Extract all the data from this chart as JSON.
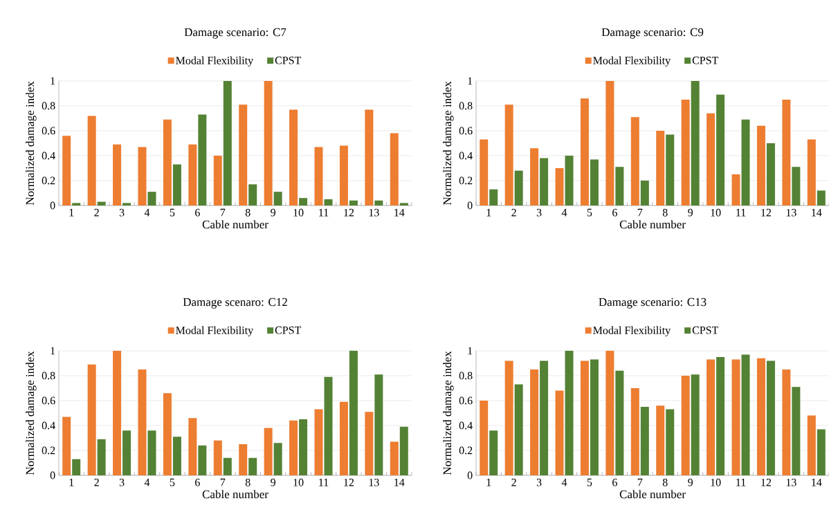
{
  "chart_data": [
    {
      "type": "bar",
      "title": "Damage scenario: C7",
      "xlabel": "Cable number",
      "ylabel": "Normalized damage index",
      "categories": [
        "1",
        "2",
        "3",
        "4",
        "5",
        "6",
        "7",
        "8",
        "9",
        "10",
        "11",
        "12",
        "13",
        "14"
      ],
      "series": [
        {
          "name": "Modal Flexibility",
          "color": "#ed7d31",
          "values": [
            0.56,
            0.72,
            0.49,
            0.47,
            0.69,
            0.49,
            0.4,
            0.81,
            1,
            0.77,
            0.47,
            0.48,
            0.77,
            0.58
          ]
        },
        {
          "name": "CPST",
          "color": "#548235",
          "values": [
            0.02,
            0.03,
            0.02,
            0.11,
            0.33,
            0.73,
            1,
            0.17,
            0.11,
            0.06,
            0.05,
            0.04,
            0.04,
            0.02
          ]
        }
      ],
      "ylim": [
        0,
        1
      ],
      "yticks": [
        0,
        0.2,
        0.4,
        0.6,
        0.8,
        1
      ],
      "grid": "y",
      "legend": "top"
    },
    {
      "type": "bar",
      "title": "Damage scenario: C9",
      "xlabel": "Cable number",
      "ylabel": "Normalized damage index",
      "categories": [
        "1",
        "2",
        "3",
        "4",
        "5",
        "6",
        "7",
        "8",
        "9",
        "10",
        "11",
        "12",
        "13",
        "14"
      ],
      "series": [
        {
          "name": "Modal Flexibility",
          "color": "#ed7d31",
          "values": [
            0.53,
            0.81,
            0.46,
            0.3,
            0.86,
            1,
            0.71,
            0.6,
            0.85,
            0.74,
            0.25,
            0.64,
            0.85,
            0.53
          ]
        },
        {
          "name": "CPST",
          "color": "#548235",
          "values": [
            0.13,
            0.28,
            0.38,
            0.4,
            0.37,
            0.31,
            0.2,
            0.57,
            1,
            0.89,
            0.69,
            0.5,
            0.31,
            0.12
          ]
        }
      ],
      "ylim": [
        0,
        1
      ],
      "yticks": [
        0,
        0.2,
        0.4,
        0.6,
        0.8,
        1
      ],
      "grid": "y",
      "legend": "top"
    },
    {
      "type": "bar",
      "title": "Damage scenaro: C12",
      "xlabel": "Cable number",
      "ylabel": "Normalized damage index",
      "categories": [
        "1",
        "2",
        "3",
        "4",
        "5",
        "6",
        "7",
        "8",
        "9",
        "10",
        "11",
        "12",
        "13",
        "14"
      ],
      "series": [
        {
          "name": "Modal Flexibility",
          "color": "#ed7d31",
          "values": [
            0.47,
            0.89,
            1,
            0.85,
            0.66,
            0.46,
            0.28,
            0.25,
            0.38,
            0.44,
            0.53,
            0.59,
            0.51,
            0.27
          ]
        },
        {
          "name": "CPST",
          "color": "#548235",
          "values": [
            0.13,
            0.29,
            0.36,
            0.36,
            0.31,
            0.24,
            0.14,
            0.14,
            0.26,
            0.45,
            0.79,
            1,
            0.81,
            0.39
          ]
        }
      ],
      "ylim": [
        0,
        1
      ],
      "yticks": [
        0,
        0.2,
        0.4,
        0.6,
        0.8,
        1
      ],
      "grid": "y",
      "legend": "top"
    },
    {
      "type": "bar",
      "title": "Damage scenario: C13",
      "xlabel": "Cable number",
      "ylabel": "Normalized damage index",
      "categories": [
        "1",
        "2",
        "3",
        "4",
        "5",
        "6",
        "7",
        "8",
        "9",
        "10",
        "11",
        "12",
        "13",
        "14"
      ],
      "series": [
        {
          "name": "Modal Flexibility",
          "color": "#ed7d31",
          "values": [
            0.6,
            0.92,
            0.85,
            0.68,
            0.92,
            1,
            0.7,
            0.56,
            0.8,
            0.93,
            0.93,
            0.94,
            0.85,
            0.48
          ]
        },
        {
          "name": "CPST",
          "color": "#548235",
          "values": [
            0.36,
            0.73,
            0.92,
            1,
            0.93,
            0.84,
            0.55,
            0.53,
            0.81,
            0.95,
            0.97,
            0.92,
            0.71,
            0.37
          ]
        }
      ],
      "ylim": [
        0,
        1
      ],
      "yticks": [
        0,
        0.2,
        0.4,
        0.6,
        0.8,
        1
      ],
      "grid": "y",
      "legend": "top"
    }
  ]
}
